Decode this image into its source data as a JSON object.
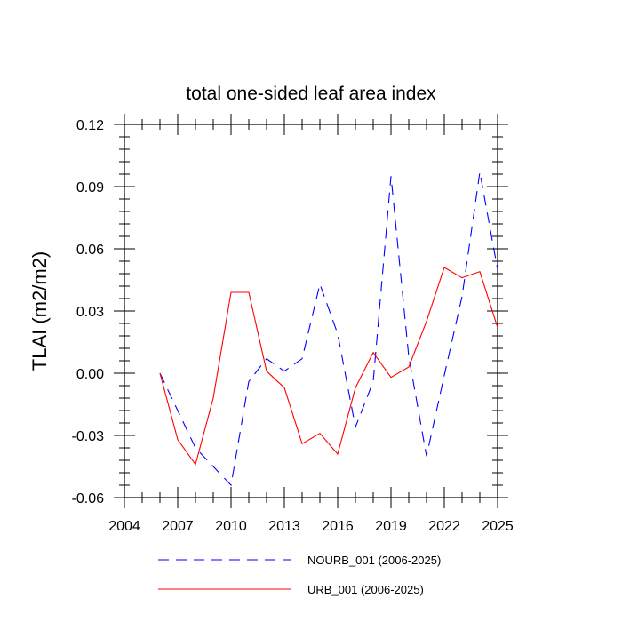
{
  "chart_data": {
    "type": "line",
    "title": "total one-sided leaf area index",
    "xlabel": "",
    "ylabel": "TLAI  (m2/m2)",
    "xlim": [
      2004,
      2025
    ],
    "ylim": [
      -0.06,
      0.12
    ],
    "x_ticks": [
      2004,
      2007,
      2010,
      2013,
      2016,
      2019,
      2022,
      2025
    ],
    "x_tick_labels": [
      "2004",
      "2007",
      "2010",
      "2013",
      "2016",
      "2019",
      "2022",
      "2025"
    ],
    "y_ticks": [
      -0.06,
      -0.03,
      0.0,
      0.03,
      0.06,
      0.09,
      0.12
    ],
    "y_tick_labels": [
      "-0.06",
      "-0.03",
      "0.00",
      "0.03",
      "0.06",
      "0.09",
      "0.12"
    ],
    "x": [
      2006,
      2007,
      2008,
      2009,
      2010,
      2011,
      2012,
      2013,
      2014,
      2015,
      2016,
      2017,
      2018,
      2019,
      2020,
      2021,
      2022,
      2023,
      2024,
      2025
    ],
    "series": [
      {
        "name": "NOURB_001 (2006-2025)",
        "color": "#0000ff",
        "dash": "dashed",
        "values": [
          0.0,
          -0.018,
          -0.036,
          -0.045,
          -0.054,
          -0.004,
          0.007,
          0.001,
          0.007,
          0.043,
          0.019,
          -0.026,
          -0.004,
          0.095,
          0.008,
          -0.04,
          -0.001,
          0.037,
          0.097,
          0.05
        ]
      },
      {
        "name": "URB_001 (2006-2025)",
        "color": "#ff0000",
        "dash": "solid",
        "values": [
          0.0,
          -0.032,
          -0.044,
          -0.012,
          0.039,
          0.039,
          0.001,
          -0.007,
          -0.034,
          -0.029,
          -0.039,
          -0.007,
          0.01,
          -0.002,
          0.003,
          0.025,
          0.051,
          0.046,
          0.049,
          0.022
        ]
      }
    ],
    "legend_position": "bottom",
    "grid": false
  }
}
